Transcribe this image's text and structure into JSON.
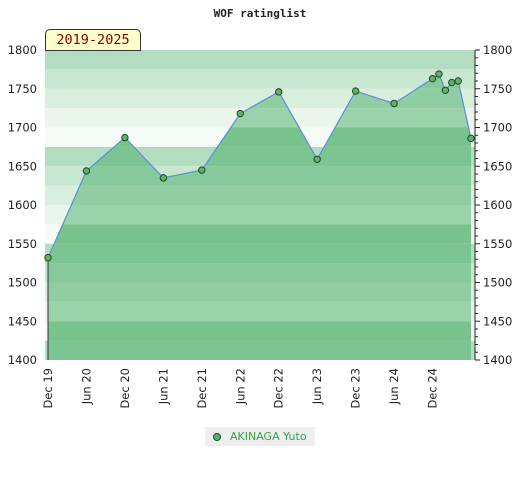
{
  "chart_data": {
    "type": "area",
    "title": "WOF ratinglist",
    "period_label": "2019-2025",
    "ylim": [
      1400,
      1800
    ],
    "y_ticks": [
      1400,
      1450,
      1500,
      1550,
      1600,
      1650,
      1700,
      1750,
      1800
    ],
    "x_range": [
      "2019-12",
      "2025-06"
    ],
    "x_ticks": [
      {
        "x": "2019-12",
        "label": "Dec 19"
      },
      {
        "x": "2020-06",
        "label": "Jun 20"
      },
      {
        "x": "2020-12",
        "label": "Dec 20"
      },
      {
        "x": "2021-06",
        "label": "Jun 21"
      },
      {
        "x": "2021-12",
        "label": "Dec 21"
      },
      {
        "x": "2022-06",
        "label": "Jun 22"
      },
      {
        "x": "2022-12",
        "label": "Dec 22"
      },
      {
        "x": "2023-06",
        "label": "Jun 23"
      },
      {
        "x": "2023-12",
        "label": "Dec 23"
      },
      {
        "x": "2024-06",
        "label": "Jun 24"
      },
      {
        "x": "2024-12",
        "label": "Dec 24"
      }
    ],
    "series": [
      {
        "name": "AKINAGA Yuto",
        "color": "#5fb06a",
        "line_color": "#5b8fd6",
        "points": [
          {
            "x": "2019-12",
            "y": 1532
          },
          {
            "x": "2020-06",
            "y": 1644
          },
          {
            "x": "2020-12",
            "y": 1687
          },
          {
            "x": "2021-06",
            "y": 1635
          },
          {
            "x": "2021-12",
            "y": 1645
          },
          {
            "x": "2022-06",
            "y": 1718
          },
          {
            "x": "2022-12",
            "y": 1746
          },
          {
            "x": "2023-06",
            "y": 1659
          },
          {
            "x": "2023-12",
            "y": 1747
          },
          {
            "x": "2024-06",
            "y": 1731
          },
          {
            "x": "2024-12",
            "y": 1763
          },
          {
            "x": "2025-01",
            "y": 1769
          },
          {
            "x": "2025-02",
            "y": 1748
          },
          {
            "x": "2025-03",
            "y": 1758
          },
          {
            "x": "2025-04",
            "y": 1760
          },
          {
            "x": "2025-06",
            "y": 1686
          }
        ]
      }
    ],
    "grid": true,
    "legend_position": "bottom"
  }
}
